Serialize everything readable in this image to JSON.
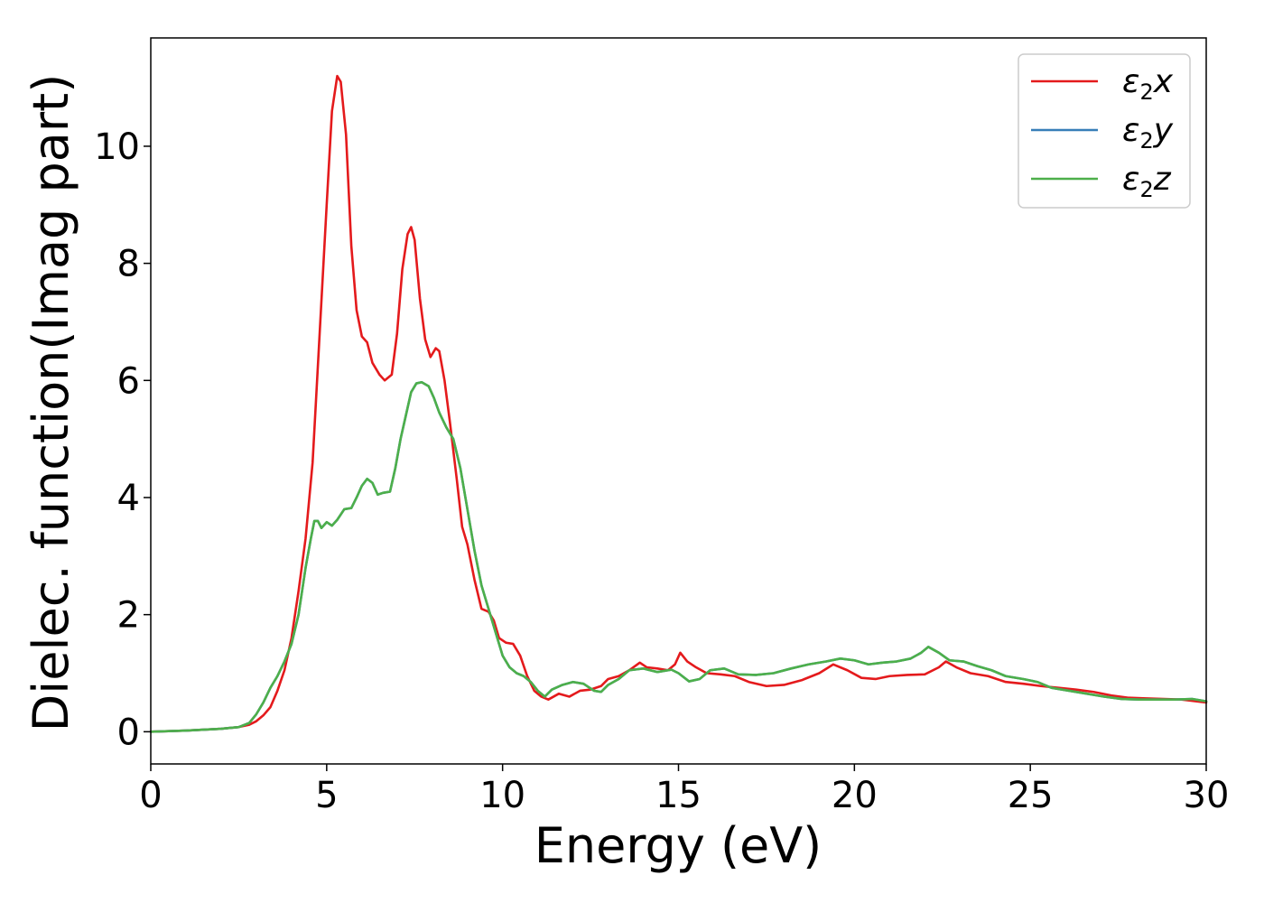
{
  "chart_data": {
    "type": "line",
    "title": "",
    "xlabel": "Energy (eV)",
    "ylabel": "Dielec. function(Imag part)",
    "xlim": [
      0,
      30
    ],
    "ylim": [
      -0.55,
      11.85
    ],
    "xticks": [
      0,
      5,
      10,
      15,
      20,
      25,
      30
    ],
    "yticks": [
      0,
      2,
      4,
      6,
      8,
      10
    ],
    "grid": false,
    "legend_position": "top-right",
    "series": [
      {
        "name": "ε₂x",
        "legend": {
          "main": "ε",
          "sub": "2",
          "axis": "x"
        },
        "color": "#e41a1c",
        "points": [
          [
            0,
            0.0
          ],
          [
            1,
            0.02
          ],
          [
            2,
            0.05
          ],
          [
            2.5,
            0.08
          ],
          [
            2.8,
            0.12
          ],
          [
            3.0,
            0.18
          ],
          [
            3.2,
            0.28
          ],
          [
            3.4,
            0.42
          ],
          [
            3.6,
            0.7
          ],
          [
            3.8,
            1.05
          ],
          [
            4.0,
            1.6
          ],
          [
            4.2,
            2.4
          ],
          [
            4.4,
            3.3
          ],
          [
            4.6,
            4.6
          ],
          [
            4.8,
            6.8
          ],
          [
            5.0,
            9.0
          ],
          [
            5.15,
            10.6
          ],
          [
            5.3,
            11.2
          ],
          [
            5.4,
            11.1
          ],
          [
            5.55,
            10.2
          ],
          [
            5.7,
            8.3
          ],
          [
            5.85,
            7.2
          ],
          [
            6.0,
            6.75
          ],
          [
            6.15,
            6.65
          ],
          [
            6.3,
            6.3
          ],
          [
            6.5,
            6.1
          ],
          [
            6.65,
            6.0
          ],
          [
            6.85,
            6.1
          ],
          [
            7.0,
            6.8
          ],
          [
            7.15,
            7.9
          ],
          [
            7.3,
            8.5
          ],
          [
            7.4,
            8.62
          ],
          [
            7.5,
            8.4
          ],
          [
            7.65,
            7.4
          ],
          [
            7.8,
            6.7
          ],
          [
            7.95,
            6.4
          ],
          [
            8.1,
            6.55
          ],
          [
            8.2,
            6.5
          ],
          [
            8.35,
            6.0
          ],
          [
            8.5,
            5.3
          ],
          [
            8.7,
            4.3
          ],
          [
            8.85,
            3.5
          ],
          [
            9.0,
            3.2
          ],
          [
            9.2,
            2.6
          ],
          [
            9.4,
            2.1
          ],
          [
            9.6,
            2.05
          ],
          [
            9.75,
            1.9
          ],
          [
            9.9,
            1.6
          ],
          [
            10.1,
            1.52
          ],
          [
            10.3,
            1.5
          ],
          [
            10.5,
            1.3
          ],
          [
            10.7,
            0.95
          ],
          [
            10.9,
            0.7
          ],
          [
            11.1,
            0.6
          ],
          [
            11.3,
            0.55
          ],
          [
            11.6,
            0.65
          ],
          [
            11.9,
            0.6
          ],
          [
            12.2,
            0.7
          ],
          [
            12.5,
            0.72
          ],
          [
            12.8,
            0.78
          ],
          [
            13.0,
            0.9
          ],
          [
            13.3,
            0.95
          ],
          [
            13.6,
            1.05
          ],
          [
            13.9,
            1.18
          ],
          [
            14.1,
            1.1
          ],
          [
            14.4,
            1.08
          ],
          [
            14.7,
            1.05
          ],
          [
            14.9,
            1.15
          ],
          [
            15.05,
            1.35
          ],
          [
            15.25,
            1.2
          ],
          [
            15.5,
            1.1
          ],
          [
            15.8,
            1.0
          ],
          [
            16.2,
            0.98
          ],
          [
            16.6,
            0.95
          ],
          [
            17.0,
            0.85
          ],
          [
            17.5,
            0.78
          ],
          [
            18.0,
            0.8
          ],
          [
            18.5,
            0.88
          ],
          [
            19.0,
            1.0
          ],
          [
            19.4,
            1.15
          ],
          [
            19.8,
            1.05
          ],
          [
            20.2,
            0.92
          ],
          [
            20.6,
            0.9
          ],
          [
            21.0,
            0.95
          ],
          [
            21.5,
            0.97
          ],
          [
            22.0,
            0.98
          ],
          [
            22.4,
            1.1
          ],
          [
            22.6,
            1.2
          ],
          [
            22.9,
            1.1
          ],
          [
            23.3,
            1.0
          ],
          [
            23.8,
            0.95
          ],
          [
            24.3,
            0.85
          ],
          [
            24.8,
            0.82
          ],
          [
            25.3,
            0.78
          ],
          [
            25.8,
            0.75
          ],
          [
            26.3,
            0.72
          ],
          [
            26.8,
            0.68
          ],
          [
            27.3,
            0.62
          ],
          [
            27.8,
            0.58
          ],
          [
            28.3,
            0.57
          ],
          [
            28.8,
            0.56
          ],
          [
            29.3,
            0.55
          ],
          [
            30,
            0.5
          ]
        ]
      },
      {
        "name": "ε₂y",
        "legend": {
          "main": "ε",
          "sub": "2",
          "axis": "y"
        },
        "color": "#377eb8",
        "points": [
          [
            0,
            0.0
          ],
          [
            1,
            0.02
          ],
          [
            2,
            0.05
          ],
          [
            2.5,
            0.08
          ],
          [
            2.8,
            0.15
          ],
          [
            3.0,
            0.3
          ],
          [
            3.2,
            0.5
          ],
          [
            3.4,
            0.75
          ],
          [
            3.6,
            0.95
          ],
          [
            3.8,
            1.2
          ],
          [
            4.0,
            1.5
          ],
          [
            4.2,
            2.0
          ],
          [
            4.4,
            2.8
          ],
          [
            4.55,
            3.3
          ],
          [
            4.65,
            3.6
          ],
          [
            4.75,
            3.6
          ],
          [
            4.85,
            3.48
          ],
          [
            5.0,
            3.58
          ],
          [
            5.15,
            3.52
          ],
          [
            5.3,
            3.62
          ],
          [
            5.5,
            3.8
          ],
          [
            5.7,
            3.82
          ],
          [
            5.85,
            4.0
          ],
          [
            6.0,
            4.2
          ],
          [
            6.15,
            4.32
          ],
          [
            6.3,
            4.25
          ],
          [
            6.45,
            4.05
          ],
          [
            6.6,
            4.08
          ],
          [
            6.8,
            4.1
          ],
          [
            6.95,
            4.5
          ],
          [
            7.1,
            5.0
          ],
          [
            7.25,
            5.4
          ],
          [
            7.4,
            5.8
          ],
          [
            7.55,
            5.95
          ],
          [
            7.7,
            5.97
          ],
          [
            7.9,
            5.9
          ],
          [
            8.05,
            5.7
          ],
          [
            8.2,
            5.45
          ],
          [
            8.4,
            5.2
          ],
          [
            8.6,
            5.0
          ],
          [
            8.8,
            4.5
          ],
          [
            9.0,
            3.8
          ],
          [
            9.2,
            3.1
          ],
          [
            9.4,
            2.5
          ],
          [
            9.6,
            2.1
          ],
          [
            9.8,
            1.7
          ],
          [
            10.0,
            1.3
          ],
          [
            10.2,
            1.1
          ],
          [
            10.4,
            1.0
          ],
          [
            10.6,
            0.95
          ],
          [
            10.8,
            0.85
          ],
          [
            11.0,
            0.7
          ],
          [
            11.2,
            0.6
          ],
          [
            11.4,
            0.72
          ],
          [
            11.7,
            0.8
          ],
          [
            12.0,
            0.85
          ],
          [
            12.3,
            0.82
          ],
          [
            12.6,
            0.7
          ],
          [
            12.8,
            0.68
          ],
          [
            13.0,
            0.8
          ],
          [
            13.3,
            0.9
          ],
          [
            13.6,
            1.05
          ],
          [
            14.0,
            1.08
          ],
          [
            14.4,
            1.02
          ],
          [
            14.8,
            1.06
          ],
          [
            15.0,
            1.0
          ],
          [
            15.3,
            0.86
          ],
          [
            15.6,
            0.9
          ],
          [
            15.9,
            1.05
          ],
          [
            16.3,
            1.08
          ],
          [
            16.7,
            0.98
          ],
          [
            17.2,
            0.97
          ],
          [
            17.7,
            1.0
          ],
          [
            18.2,
            1.08
          ],
          [
            18.7,
            1.15
          ],
          [
            19.2,
            1.2
          ],
          [
            19.6,
            1.25
          ],
          [
            20.0,
            1.22
          ],
          [
            20.4,
            1.15
          ],
          [
            20.8,
            1.18
          ],
          [
            21.2,
            1.2
          ],
          [
            21.6,
            1.25
          ],
          [
            21.9,
            1.35
          ],
          [
            22.1,
            1.45
          ],
          [
            22.4,
            1.35
          ],
          [
            22.7,
            1.22
          ],
          [
            23.1,
            1.2
          ],
          [
            23.5,
            1.12
          ],
          [
            23.9,
            1.05
          ],
          [
            24.3,
            0.95
          ],
          [
            24.8,
            0.9
          ],
          [
            25.2,
            0.85
          ],
          [
            25.6,
            0.75
          ],
          [
            26.1,
            0.7
          ],
          [
            26.6,
            0.65
          ],
          [
            27.1,
            0.6
          ],
          [
            27.6,
            0.56
          ],
          [
            28.1,
            0.55
          ],
          [
            28.6,
            0.55
          ],
          [
            29.1,
            0.55
          ],
          [
            29.6,
            0.56
          ],
          [
            30,
            0.52
          ]
        ]
      },
      {
        "name": "ε₂z",
        "legend": {
          "main": "ε",
          "sub": "2",
          "axis": "z"
        },
        "color": "#4daf4a",
        "points": [
          [
            0,
            0.0
          ],
          [
            1,
            0.02
          ],
          [
            2,
            0.05
          ],
          [
            2.5,
            0.08
          ],
          [
            2.8,
            0.15
          ],
          [
            3.0,
            0.3
          ],
          [
            3.2,
            0.5
          ],
          [
            3.4,
            0.75
          ],
          [
            3.6,
            0.95
          ],
          [
            3.8,
            1.2
          ],
          [
            4.0,
            1.5
          ],
          [
            4.2,
            2.0
          ],
          [
            4.4,
            2.8
          ],
          [
            4.55,
            3.3
          ],
          [
            4.65,
            3.6
          ],
          [
            4.75,
            3.6
          ],
          [
            4.85,
            3.48
          ],
          [
            5.0,
            3.58
          ],
          [
            5.15,
            3.52
          ],
          [
            5.3,
            3.62
          ],
          [
            5.5,
            3.8
          ],
          [
            5.7,
            3.82
          ],
          [
            5.85,
            4.0
          ],
          [
            6.0,
            4.2
          ],
          [
            6.15,
            4.32
          ],
          [
            6.3,
            4.25
          ],
          [
            6.45,
            4.05
          ],
          [
            6.6,
            4.08
          ],
          [
            6.8,
            4.1
          ],
          [
            6.95,
            4.5
          ],
          [
            7.1,
            5.0
          ],
          [
            7.25,
            5.4
          ],
          [
            7.4,
            5.8
          ],
          [
            7.55,
            5.95
          ],
          [
            7.7,
            5.97
          ],
          [
            7.9,
            5.9
          ],
          [
            8.05,
            5.7
          ],
          [
            8.2,
            5.45
          ],
          [
            8.4,
            5.2
          ],
          [
            8.6,
            5.0
          ],
          [
            8.8,
            4.5
          ],
          [
            9.0,
            3.8
          ],
          [
            9.2,
            3.1
          ],
          [
            9.4,
            2.5
          ],
          [
            9.6,
            2.1
          ],
          [
            9.8,
            1.7
          ],
          [
            10.0,
            1.3
          ],
          [
            10.2,
            1.1
          ],
          [
            10.4,
            1.0
          ],
          [
            10.6,
            0.95
          ],
          [
            10.8,
            0.85
          ],
          [
            11.0,
            0.7
          ],
          [
            11.2,
            0.6
          ],
          [
            11.4,
            0.72
          ],
          [
            11.7,
            0.8
          ],
          [
            12.0,
            0.85
          ],
          [
            12.3,
            0.82
          ],
          [
            12.6,
            0.7
          ],
          [
            12.8,
            0.68
          ],
          [
            13.0,
            0.8
          ],
          [
            13.3,
            0.9
          ],
          [
            13.6,
            1.05
          ],
          [
            14.0,
            1.08
          ],
          [
            14.4,
            1.02
          ],
          [
            14.8,
            1.06
          ],
          [
            15.0,
            1.0
          ],
          [
            15.3,
            0.86
          ],
          [
            15.6,
            0.9
          ],
          [
            15.9,
            1.05
          ],
          [
            16.3,
            1.08
          ],
          [
            16.7,
            0.98
          ],
          [
            17.2,
            0.97
          ],
          [
            17.7,
            1.0
          ],
          [
            18.2,
            1.08
          ],
          [
            18.7,
            1.15
          ],
          [
            19.2,
            1.2
          ],
          [
            19.6,
            1.25
          ],
          [
            20.0,
            1.22
          ],
          [
            20.4,
            1.15
          ],
          [
            20.8,
            1.18
          ],
          [
            21.2,
            1.2
          ],
          [
            21.6,
            1.25
          ],
          [
            21.9,
            1.35
          ],
          [
            22.1,
            1.45
          ],
          [
            22.4,
            1.35
          ],
          [
            22.7,
            1.22
          ],
          [
            23.1,
            1.2
          ],
          [
            23.5,
            1.12
          ],
          [
            23.9,
            1.05
          ],
          [
            24.3,
            0.95
          ],
          [
            24.8,
            0.9
          ],
          [
            25.2,
            0.85
          ],
          [
            25.6,
            0.75
          ],
          [
            26.1,
            0.7
          ],
          [
            26.6,
            0.65
          ],
          [
            27.1,
            0.6
          ],
          [
            27.6,
            0.56
          ],
          [
            28.1,
            0.55
          ],
          [
            28.6,
            0.55
          ],
          [
            29.1,
            0.55
          ],
          [
            29.6,
            0.56
          ],
          [
            30,
            0.52
          ]
        ]
      }
    ]
  }
}
